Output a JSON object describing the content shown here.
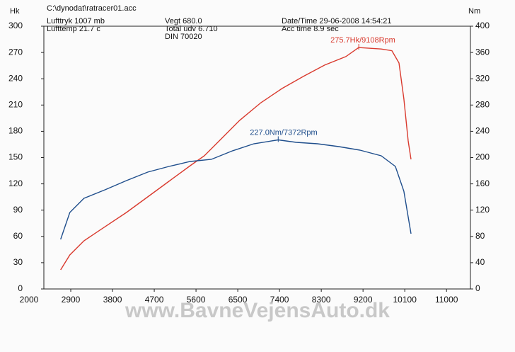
{
  "header": {
    "file": "C:\\dynodat\\ratracer01.acc",
    "pressure": "Lufttryk  1007 mb",
    "temp": "Lufttemp  21.7 c",
    "weight": "Vegt    680.0",
    "ratio": "Total udv 6.710",
    "norm": "DIN 70020",
    "datetime": "Date/Time  29-06-2008 14:54:21",
    "acc": "Acc time   8.9 sec"
  },
  "footer": "www.BavneVejensAuto.dk",
  "chart_data": {
    "type": "line",
    "ylabel": "Hk",
    "y2label": "Nm",
    "xlim": [
      2000,
      11500
    ],
    "xticks": [
      2000,
      2900,
      3800,
      4700,
      5600,
      6500,
      7400,
      8300,
      9200,
      10100,
      11000
    ],
    "ylim": [
      0,
      300
    ],
    "yticks": [
      0,
      30,
      60,
      90,
      120,
      150,
      180,
      210,
      240,
      270,
      300
    ],
    "y2lim": [
      0,
      400
    ],
    "y2ticks": [
      0,
      40,
      80,
      120,
      160,
      200,
      240,
      280,
      320,
      360,
      400
    ],
    "series": [
      {
        "color": "#d93a2e",
        "axis": "y",
        "annotation": "275.7Hk/9108Rpm",
        "x": [
          2681,
          2880,
          3185,
          3643,
          4100,
          4558,
          5016,
          5473,
          5778,
          6083,
          6541,
          6999,
          7456,
          7914,
          8372,
          8830,
          9108,
          9593,
          9822,
          9975,
          10081,
          10173,
          10234
        ],
        "values": [
          21.8,
          38.8,
          55.0,
          71.2,
          87.3,
          105.1,
          122.9,
          140.7,
          152.0,
          168.2,
          192.5,
          212.7,
          228.9,
          242.7,
          255.6,
          265.3,
          275.7,
          274,
          272,
          258,
          217,
          169,
          148
        ]
      },
      {
        "color": "#1f4e8c",
        "axis": "y2",
        "annotation": "227.0Nm/7372Rpm",
        "x": [
          2681,
          2880,
          3185,
          3643,
          4100,
          4558,
          5016,
          5473,
          5931,
          6389,
          6846,
          7372,
          7762,
          8219,
          8677,
          9135,
          9593,
          9898,
          10081,
          10234
        ],
        "values": [
          75.5,
          116.4,
          138.0,
          151.0,
          165.0,
          177.9,
          186.5,
          194.1,
          197.3,
          210.3,
          221.0,
          227.0,
          223.2,
          221.0,
          216.7,
          211.3,
          202.7,
          186.5,
          148.8,
          84.1
        ]
      }
    ]
  }
}
